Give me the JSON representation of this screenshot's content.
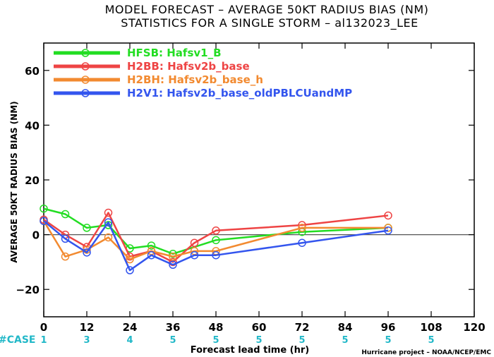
{
  "chart_data": {
    "type": "line",
    "title": "MODEL FORECAST – AVERAGE 50KT RADIUS BIAS (NM)",
    "subtitle": "STATISTICS FOR A SINGLE STORM – al132023_LEE",
    "xlabel": "Forecast lead time (hr)",
    "ylabel": "AVERAGE 50KT RADIUS BIAS (NM)",
    "xlim": [
      0,
      120
    ],
    "ylim": [
      -30,
      70
    ],
    "x_ticks": [
      0,
      12,
      24,
      36,
      48,
      60,
      72,
      84,
      96,
      108,
      120
    ],
    "y_ticks": [
      -20,
      0,
      20,
      40,
      60
    ],
    "y_tick_labels": [
      "−20",
      "0",
      "20",
      "40",
      "60"
    ],
    "zero_line": true,
    "grid": false,
    "legend_position": "top-left",
    "series": [
      {
        "name": "HFSB: Hafsv1_B",
        "color": "#22dd22",
        "x": [
          0,
          6,
          12,
          18,
          24,
          30,
          36,
          48,
          72,
          96
        ],
        "y": [
          9.5,
          7.5,
          2.5,
          3.5,
          -5,
          -4,
          -7,
          -2,
          1,
          2.5
        ]
      },
      {
        "name": "H2BB: Hafsv2b_base",
        "color": "#ee4444",
        "x": [
          0,
          6,
          12,
          18,
          24,
          30,
          36,
          42,
          48,
          72,
          96
        ],
        "y": [
          5.5,
          0,
          -4.5,
          8,
          -8,
          -6,
          -10,
          -3,
          1.5,
          3.5,
          7
        ]
      },
      {
        "name": "H2BH: Hafsv2b_base_h",
        "color": "#f28a30",
        "x": [
          0,
          6,
          12,
          18,
          24,
          30,
          36,
          42,
          48,
          72,
          96
        ],
        "y": [
          5,
          -8,
          -5.5,
          -1,
          -9,
          -6,
          -8,
          -6,
          -6,
          2.5,
          2.5
        ]
      },
      {
        "name": "H2V1: Hafsv2b_base_oldPBLCUandMP",
        "color": "#3355ee",
        "x": [
          0,
          6,
          12,
          18,
          24,
          30,
          36,
          42,
          48,
          72,
          96
        ],
        "y": [
          5,
          -1.5,
          -6.5,
          4.5,
          -13,
          -7.5,
          -11,
          -7.5,
          -7.5,
          -3,
          1.5
        ]
      }
    ],
    "case_row": {
      "label": "#CASE",
      "x": [
        0,
        12,
        24,
        36,
        48,
        60,
        72,
        84,
        96,
        108
      ],
      "counts": [
        "1",
        "3",
        "4",
        "5",
        "5",
        "5",
        "5",
        "5",
        "5",
        "5"
      ]
    },
    "credit": "Hurricane project – NOAA/NCEP/EMC"
  }
}
